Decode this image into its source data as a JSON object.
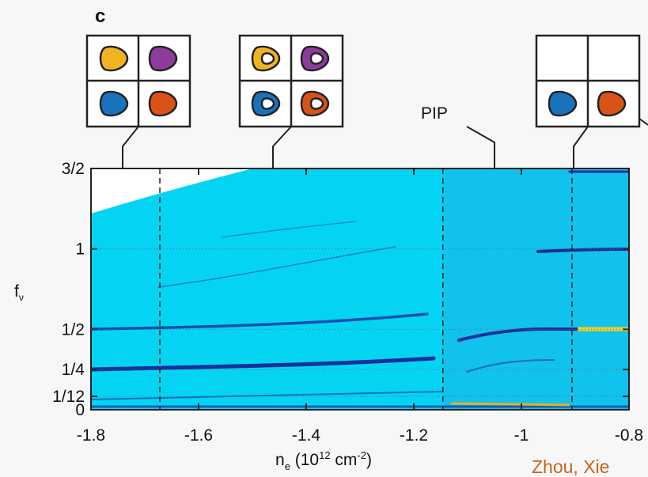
{
  "chart_data": {
    "type": "map",
    "panel_label": "c",
    "annotation": "PIP",
    "credit": "Zhou, Xie",
    "ylabel": [
      "f",
      "ν"
    ],
    "xlabel": [
      "n",
      "e",
      " (10",
      "12",
      " cm",
      "-2",
      ")"
    ],
    "xlim": [
      -1.8,
      -0.8
    ],
    "ylim": [
      0,
      1.5
    ],
    "xticks": [
      -1.8,
      -1.6,
      -1.4,
      -1.2,
      -1,
      -0.8
    ],
    "yticks": [
      {
        "value": 1.5,
        "label": "3/2"
      },
      1,
      {
        "value": 0.5,
        "label": "1/2"
      },
      {
        "value": 0.25,
        "label": "1/4"
      },
      {
        "value": 0.08333,
        "label": "1/12"
      },
      0
    ],
    "grid": true,
    "dashed_lines": [
      -1.672,
      -1.146,
      -0.906
    ]
  }
}
